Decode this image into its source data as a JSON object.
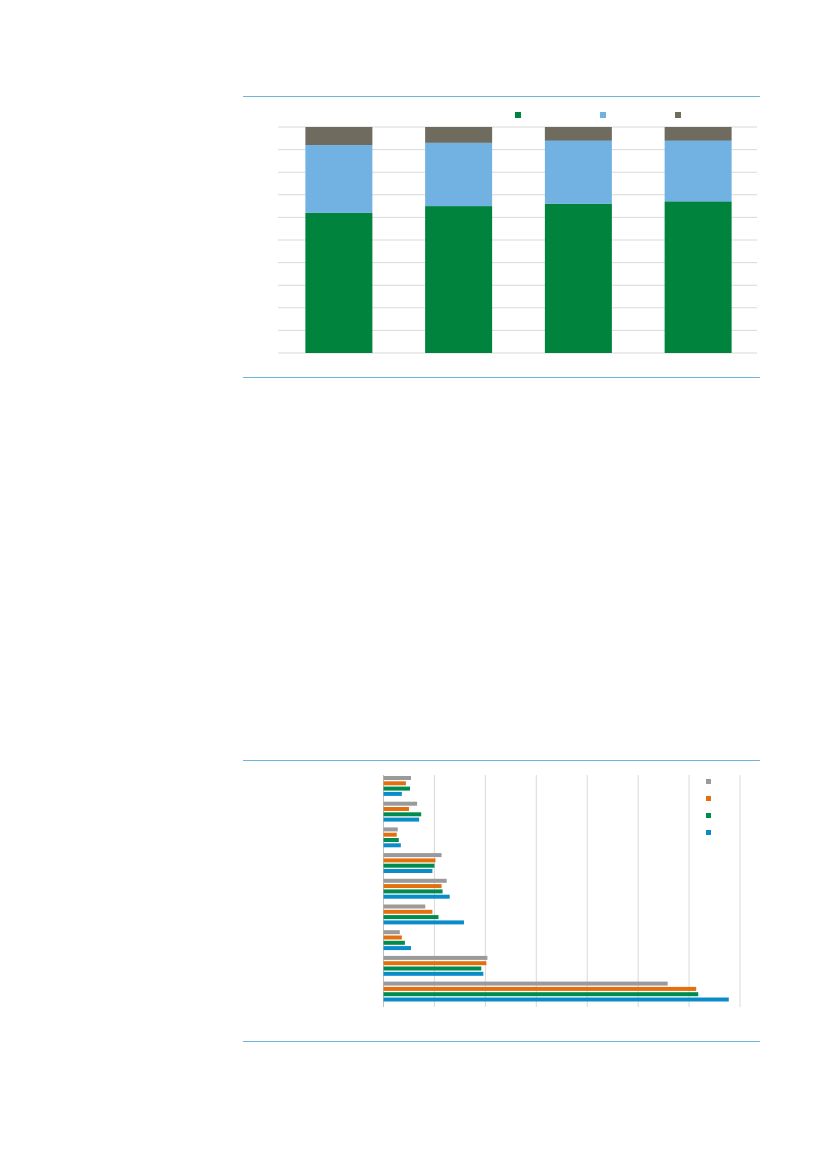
{
  "colors": {
    "rule": "#6cb6d9",
    "grid": "#d9d9d9",
    "green": "#00843d",
    "light_blue": "#72b2e3",
    "dark_grey": "#6f6b5f",
    "grey": "#9a9a9a",
    "orange": "#e2700f",
    "teal_green": "#008b4f",
    "blue": "#0a8cc8"
  },
  "chart_data": [
    {
      "type": "bar",
      "stacked": true,
      "orientation": "vertical",
      "categories": [
        "",
        "",
        "",
        ""
      ],
      "ylim": [
        0,
        100
      ],
      "grid": true,
      "legend": "top-right",
      "series": [
        {
          "color": "#00843d",
          "values": [
            62,
            65,
            66,
            67
          ]
        },
        {
          "color": "#72b2e3",
          "values": [
            30,
            28,
            28,
            27
          ]
        },
        {
          "color": "#6f6b5f",
          "values": [
            8,
            7,
            6,
            6
          ]
        }
      ]
    },
    {
      "type": "bar",
      "orientation": "horizontal",
      "categories": [
        "",
        "",
        "",
        "",
        "",
        "",
        "",
        "",
        ""
      ],
      "xlim": [
        0,
        35
      ],
      "grid": true,
      "legend": "right",
      "series": [
        {
          "color": "#9a9a9a",
          "values": [
            2.7,
            3.3,
            1.4,
            5.7,
            6.2,
            4.1,
            1.6,
            10.2,
            27.9
          ]
        },
        {
          "color": "#e2700f",
          "values": [
            2.2,
            2.5,
            1.3,
            5.1,
            5.7,
            4.8,
            1.8,
            10.1,
            30.7
          ]
        },
        {
          "color": "#008b4f",
          "values": [
            2.6,
            3.7,
            1.5,
            5.0,
            5.8,
            5.4,
            2.1,
            9.6,
            30.9
          ]
        },
        {
          "color": "#0a8cc8",
          "values": [
            1.8,
            3.5,
            1.7,
            4.8,
            6.5,
            7.9,
            2.7,
            9.8,
            33.9
          ]
        }
      ]
    }
  ]
}
